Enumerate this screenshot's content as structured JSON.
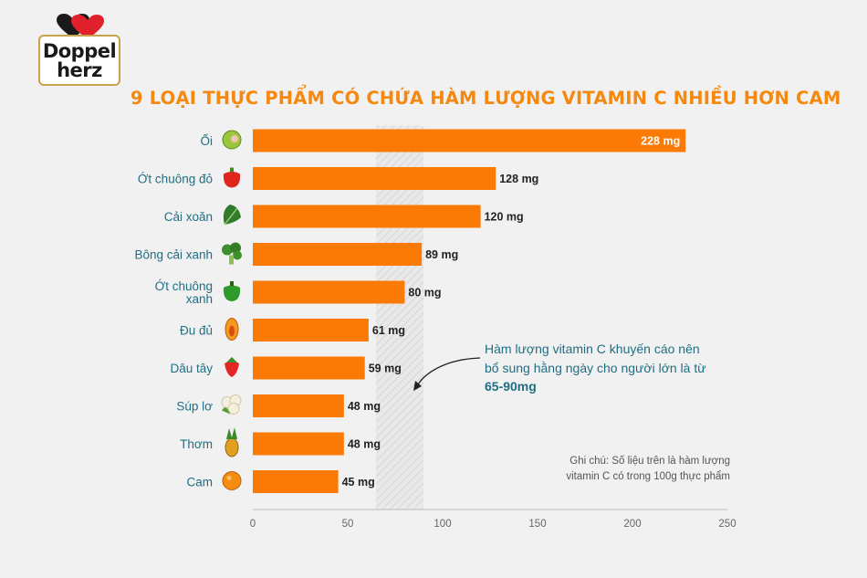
{
  "brand": {
    "line1": "Doppel",
    "line2": "herz"
  },
  "colors": {
    "bar": "#fb7a05",
    "title": "#f5890f",
    "category": "#1f6e84",
    "axis": "#bbbbbb",
    "tick": "#666666"
  },
  "recommendation": {
    "line1": "Hàm lượng vitamin C khuyến cáo nên",
    "line2": "bổ sung hằng ngày cho người lớn là từ",
    "range": "65-90mg",
    "band": [
      65,
      90
    ]
  },
  "footnote": {
    "line1": "Ghi chú: Số liệu trên là hàm lượng",
    "line2": "vitamin C có trong 100g thực phẩm"
  },
  "chart_data": {
    "type": "bar",
    "orientation": "horizontal",
    "title": "9 LOẠI THỰC PHẨM CÓ CHỨA HÀM LƯỢNG VITAMIN C NHIỀU HƠN CAM",
    "categories": [
      {
        "label": [
          "Ổi"
        ],
        "icon": "guava-icon"
      },
      {
        "label": [
          "Ớt chuông đỏ"
        ],
        "icon": "red-bell-pepper-icon"
      },
      {
        "label": [
          "Cải xoăn"
        ],
        "icon": "kale-icon"
      },
      {
        "label": [
          "Bông cải xanh"
        ],
        "icon": "broccoli-icon"
      },
      {
        "label": [
          "Ớt chuông",
          "xanh"
        ],
        "icon": "green-bell-pepper-icon"
      },
      {
        "label": [
          "Đu đủ"
        ],
        "icon": "papaya-icon"
      },
      {
        "label": [
          "Dâu tây"
        ],
        "icon": "strawberry-icon"
      },
      {
        "label": [
          "Súp lơ"
        ],
        "icon": "cauliflower-icon"
      },
      {
        "label": [
          "Thơm"
        ],
        "icon": "pineapple-icon"
      },
      {
        "label": [
          "Cam"
        ],
        "icon": "orange-icon"
      }
    ],
    "values": [
      228,
      128,
      120,
      89,
      80,
      61,
      59,
      48,
      48,
      45
    ],
    "value_labels": [
      "228 mg",
      "128 mg",
      "120 mg",
      "89 mg",
      "80 mg",
      "61 mg",
      "59 mg",
      "48 mg",
      "48 mg",
      "45 mg"
    ],
    "x_ticks": [
      0,
      50,
      100,
      150,
      200,
      250
    ],
    "xlim": [
      0,
      250
    ],
    "grid": false,
    "legend": "none"
  }
}
